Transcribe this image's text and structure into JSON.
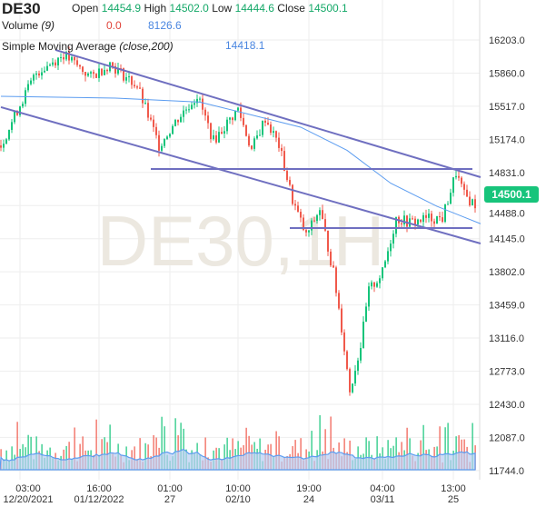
{
  "header": {
    "symbol": "DE30",
    "open_label": "Open",
    "open": "14454.9",
    "high_label": "High",
    "high": "14502.0",
    "low_label": "Low",
    "low": "14444.6",
    "close_label": "Close",
    "close": "14500.1",
    "volume_label": "Volume",
    "volume_period": "(9)",
    "volume_value": "0.0",
    "volume_ma": "8126.6",
    "sma_label": "Simple Moving Average",
    "sma_params": "(close,200)",
    "sma_value": "14418.1"
  },
  "watermark": "DE30,1H",
  "last_price": "14500.1",
  "colors": {
    "up": "#14c47a",
    "down": "#f0594b",
    "sma": "#5b9cf0",
    "trendline": "#6f6fc0",
    "badge": "#17c47b",
    "volume_ma_fill": "#b8cdf2"
  },
  "chart_data": {
    "type": "candlestick",
    "ylim": [
      11600,
      16400
    ],
    "y_ticks": [
      "16203.0",
      "15860.0",
      "15517.0",
      "15174.0",
      "14831.0",
      "14488.0",
      "14145.0",
      "13802.0",
      "13459.0",
      "13116.0",
      "12773.0",
      "12430.0",
      "12087.0",
      "11744.0"
    ],
    "x_ticks": [
      {
        "bar": 7,
        "time": "03:00",
        "date": "12/20/2021"
      },
      {
        "bar": 36,
        "time": "16:00",
        "date": "01/12/2022"
      },
      {
        "bar": 62,
        "time": "01:00",
        "date": "27"
      },
      {
        "bar": 87,
        "time": "10:00",
        "date": "02/10"
      },
      {
        "bar": 113,
        "time": "19:00",
        "date": "24"
      },
      {
        "bar": 140,
        "time": "04:00",
        "date": "03/11"
      },
      {
        "bar": 166,
        "time": "13:00",
        "date": "25"
      }
    ],
    "close_path": [
      [
        0,
        15111
      ],
      [
        7,
        15535
      ],
      [
        13,
        15864
      ],
      [
        23,
        16052
      ],
      [
        33,
        15817
      ],
      [
        40,
        15958
      ],
      [
        50,
        15723
      ],
      [
        58,
        15111
      ],
      [
        65,
        15393
      ],
      [
        72,
        15629
      ],
      [
        78,
        15158
      ],
      [
        87,
        15488
      ],
      [
        92,
        15064
      ],
      [
        97,
        15393
      ],
      [
        102,
        15111
      ],
      [
        107,
        14546
      ],
      [
        112,
        14170
      ],
      [
        117,
        14452
      ],
      [
        122,
        13793
      ],
      [
        125,
        13229
      ],
      [
        128,
        12570
      ],
      [
        132,
        13040
      ],
      [
        135,
        13605
      ],
      [
        140,
        13793
      ],
      [
        145,
        14358
      ],
      [
        150,
        14311
      ],
      [
        157,
        14358
      ],
      [
        162,
        14358
      ],
      [
        165,
        14640
      ],
      [
        167,
        14828
      ],
      [
        170,
        14593
      ],
      [
        174,
        14500
      ]
    ],
    "sma_200": [
      [
        0,
        15620
      ],
      [
        43,
        15600
      ],
      [
        73,
        15560
      ],
      [
        110,
        15300
      ],
      [
        127,
        15060
      ],
      [
        143,
        14720
      ],
      [
        160,
        14480
      ],
      [
        176,
        14300
      ]
    ],
    "trendlines": [
      {
        "from": [
          20,
          16100
        ],
        "to": [
          176,
          14782
        ]
      },
      {
        "from": [
          0,
          15507
        ],
        "to": [
          176,
          14095
        ]
      },
      {
        "from": [
          55,
          14867
        ],
        "to": [
          173,
          14867
        ]
      },
      {
        "from": [
          106,
          14255
        ],
        "to": [
          173,
          14255
        ]
      }
    ]
  }
}
